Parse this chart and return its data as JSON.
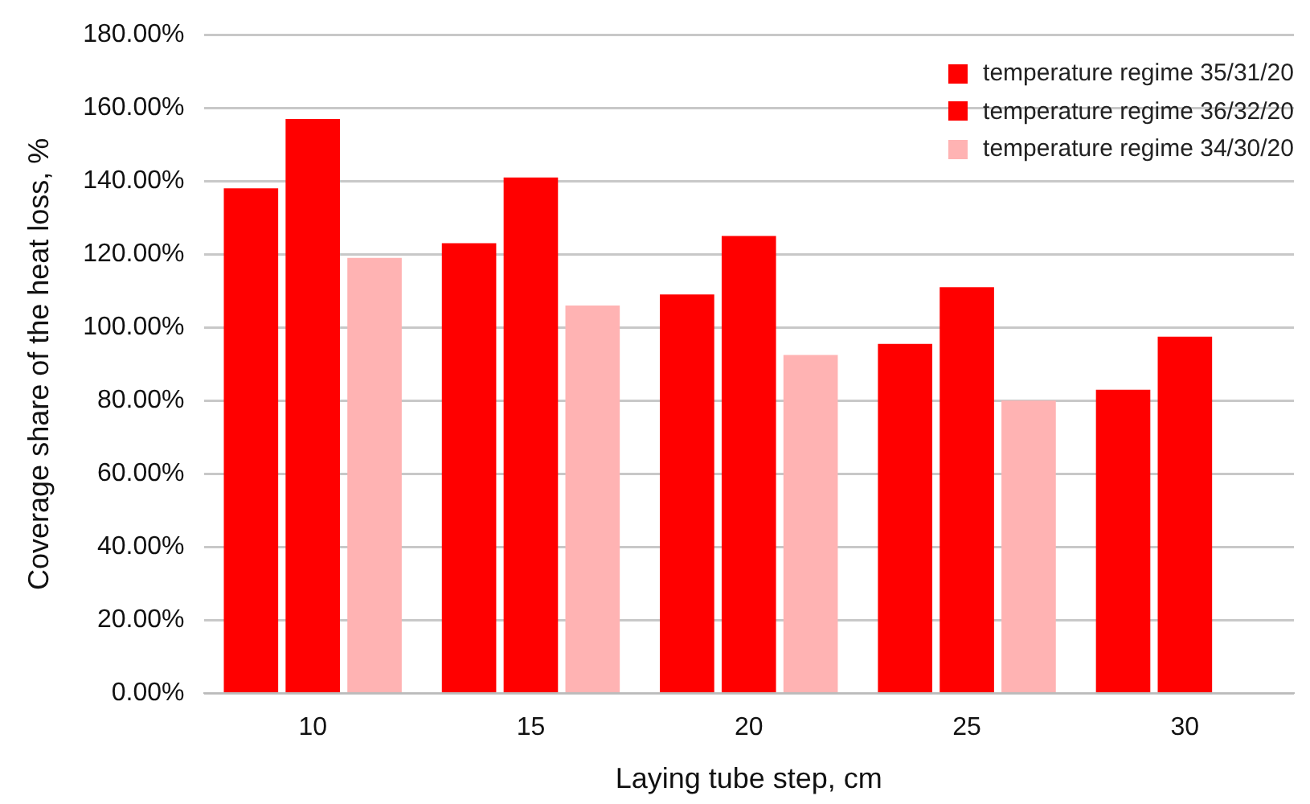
{
  "chart_data": {
    "type": "bar",
    "xlabel": "Laying tube step, cm",
    "ylabel": "Coverage share of the heat loss, %",
    "categories": [
      "10",
      "15",
      "20",
      "25",
      "30"
    ],
    "series": [
      {
        "name": "temperature regime 35/31/20",
        "color": "#ff0000",
        "values": [
          138,
          123,
          109,
          95.5,
          83
        ]
      },
      {
        "name": "temperature regime 36/32/20",
        "color": "#ff0000",
        "values": [
          157,
          141,
          125,
          111,
          97.5
        ]
      },
      {
        "name": "temperature regime 34/30/20",
        "color": "#ffb3b3",
        "values": [
          119,
          106,
          92.5,
          80,
          null
        ]
      }
    ],
    "ylim": [
      0,
      180
    ],
    "yticks": [
      {
        "value": 0,
        "label": "0.00%"
      },
      {
        "value": 20,
        "label": "20.00%"
      },
      {
        "value": 40,
        "label": "40.00%"
      },
      {
        "value": 60,
        "label": "60.00%"
      },
      {
        "value": 80,
        "label": "80.00%"
      },
      {
        "value": 100,
        "label": "100.00%"
      },
      {
        "value": 120,
        "label": "120.00%"
      },
      {
        "value": 140,
        "label": "140.00%"
      },
      {
        "value": 160,
        "label": "160.00%"
      },
      {
        "value": 180,
        "label": "180.00%"
      }
    ],
    "grid": "y",
    "legend": "top right"
  }
}
